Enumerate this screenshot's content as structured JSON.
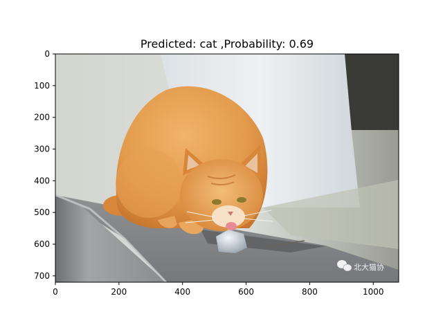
{
  "chart_data": {
    "type": "image",
    "title": "Predicted: cat ,Probability: 0.69",
    "image_content": "photograph of an orange tabby cat crouching on a grey stone ledge, licking a piece of ice, blurred pale tree trunk behind",
    "watermark_text": "北大猫协",
    "xlim": [
      0,
      1080
    ],
    "ylim": [
      720,
      0
    ],
    "xticks": [
      0,
      200,
      400,
      600,
      800,
      1000
    ],
    "yticks": [
      0,
      100,
      200,
      300,
      400,
      500,
      600,
      700
    ],
    "grid": false,
    "colors": {
      "fur": "#e39a4b",
      "fur_dark": "#c8762f",
      "ledge": "#8c8d8f",
      "background": "#d8dbd6",
      "tree": "#e6eaec"
    }
  }
}
